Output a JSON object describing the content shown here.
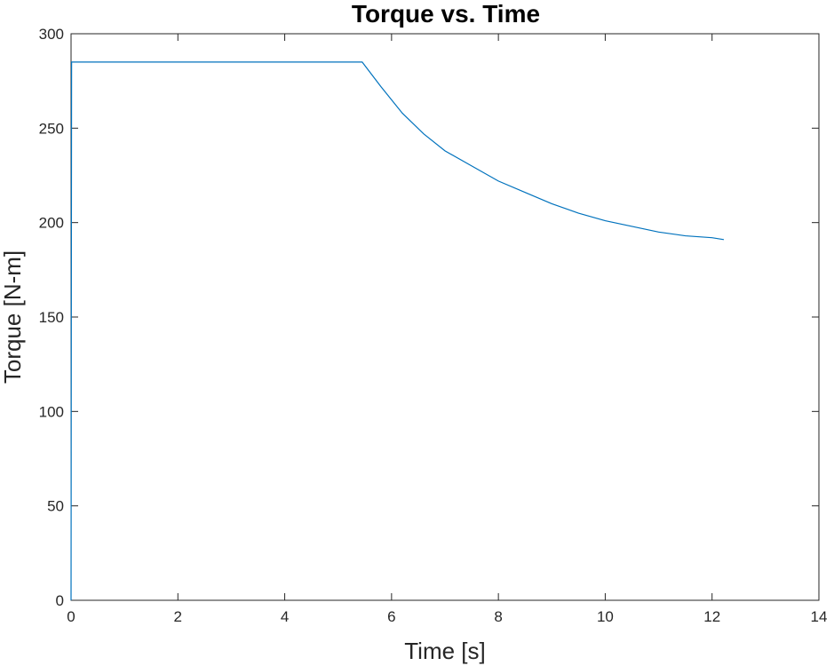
{
  "chart_data": {
    "type": "line",
    "title": "Torque vs. Time",
    "xlabel": "Time [s]",
    "ylabel": "Torque [N-m]",
    "xlim": [
      0,
      14
    ],
    "ylim": [
      0,
      300
    ],
    "xticks": [
      0,
      2,
      4,
      6,
      8,
      10,
      12,
      14
    ],
    "yticks": [
      0,
      50,
      100,
      150,
      200,
      250,
      300
    ],
    "grid": false,
    "legend": "none",
    "series": [
      {
        "color": "#0072BD",
        "x": [
          0,
          0.01,
          5.45,
          5.8,
          6.2,
          6.6,
          7.0,
          7.5,
          8.0,
          8.5,
          9.0,
          9.5,
          10.0,
          10.5,
          11.0,
          11.5,
          12.0,
          12.22
        ],
        "y": [
          0,
          285,
          285,
          272,
          258,
          247,
          238,
          230,
          222,
          216,
          210,
          205,
          201,
          198,
          195,
          193,
          192,
          191
        ]
      }
    ]
  }
}
